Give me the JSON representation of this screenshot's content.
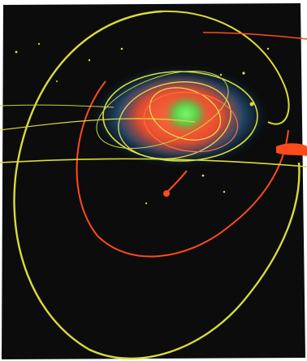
{
  "artwork": {
    "palette": {
      "paper": "#ffffff",
      "ground": "#0c0c0c",
      "yellow_line": "#d8dc3a",
      "orange_line": "#ff4a1e",
      "glow_blue": "#2e88c8",
      "glow_orange": "#ff5a2e",
      "glow_green": "#3fe04a",
      "spatter": "#e8d84a"
    },
    "icon": "abstract-spin-art-painting"
  }
}
